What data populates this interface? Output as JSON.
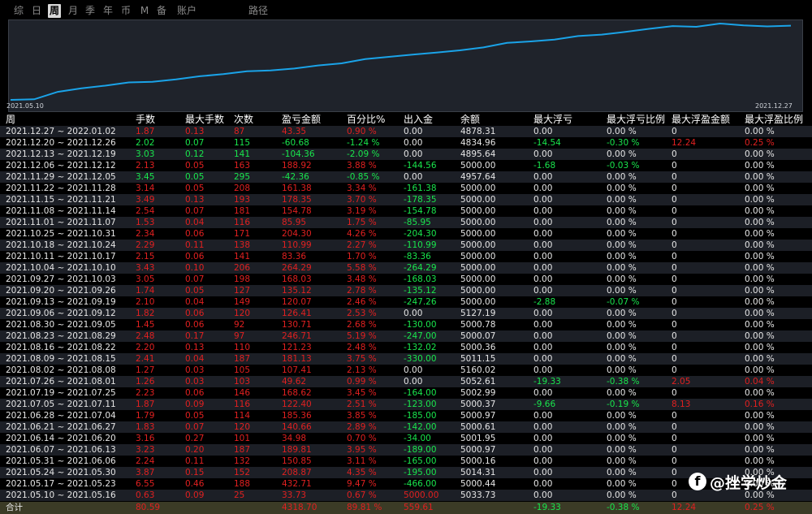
{
  "tabs": [
    {
      "label": "综",
      "active": false
    },
    {
      "label": "日",
      "active": false
    },
    {
      "label": "周",
      "active": true
    },
    {
      "label": "月",
      "active": false
    },
    {
      "label": "季",
      "active": false
    },
    {
      "label": "年",
      "active": false
    },
    {
      "label": "币",
      "active": false
    },
    {
      "label": "M",
      "active": false
    },
    {
      "label": "备",
      "active": false
    },
    {
      "label": "账户",
      "active": false
    },
    {
      "label": "路径",
      "active": false
    }
  ],
  "chart": {
    "start_date": "2021.05.10",
    "end_date": "2021.12.27",
    "line_color": "#1aa3e8"
  },
  "columns": [
    "周",
    "手数",
    "最大手数",
    "次数",
    "盈亏金额",
    "百分比%",
    "出入金",
    "余额",
    "最大浮亏",
    "最大浮亏比例",
    "最大浮盈金额",
    "最大浮盈比例"
  ],
  "rows": [
    [
      "2021.12.27 ~ 2022.01.02",
      "1.87",
      "0.13",
      "87",
      "43.35",
      "0.90 %",
      "0.00",
      "4878.31",
      "0.00",
      "0.00 %",
      "0",
      "0.00 %"
    ],
    [
      "2021.12.20 ~ 2021.12.26",
      "2.02",
      "0.07",
      "115",
      "-60.68",
      "-1.24 %",
      "0.00",
      "4834.96",
      "-14.54",
      "-0.30 %",
      "12.24",
      "0.25 %"
    ],
    [
      "2021.12.13 ~ 2021.12.19",
      "3.03",
      "0.12",
      "141",
      "-104.36",
      "-2.09 %",
      "0.00",
      "4895.64",
      "0.00",
      "0.00 %",
      "0",
      "0.00 %"
    ],
    [
      "2021.12.06 ~ 2021.12.12",
      "2.13",
      "0.05",
      "163",
      "188.92",
      "3.88 %",
      "-144.56",
      "5000.00",
      "-1.68",
      "-0.03 %",
      "0",
      "0.00 %"
    ],
    [
      "2021.11.29 ~ 2021.12.05",
      "3.45",
      "0.05",
      "295",
      "-42.36",
      "-0.85 %",
      "0.00",
      "4957.64",
      "0.00",
      "0.00 %",
      "0",
      "0.00 %"
    ],
    [
      "2021.11.22 ~ 2021.11.28",
      "3.14",
      "0.05",
      "208",
      "161.38",
      "3.34 %",
      "-161.38",
      "5000.00",
      "0.00",
      "0.00 %",
      "0",
      "0.00 %"
    ],
    [
      "2021.11.15 ~ 2021.11.21",
      "3.49",
      "0.13",
      "193",
      "178.35",
      "3.70 %",
      "-178.35",
      "5000.00",
      "0.00",
      "0.00 %",
      "0",
      "0.00 %"
    ],
    [
      "2021.11.08 ~ 2021.11.14",
      "2.54",
      "0.07",
      "181",
      "154.78",
      "3.19 %",
      "-154.78",
      "5000.00",
      "0.00",
      "0.00 %",
      "0",
      "0.00 %"
    ],
    [
      "2021.11.01 ~ 2021.11.07",
      "1.53",
      "0.04",
      "116",
      "85.95",
      "1.75 %",
      "-85.95",
      "5000.00",
      "0.00",
      "0.00 %",
      "0",
      "0.00 %"
    ],
    [
      "2021.10.25 ~ 2021.10.31",
      "2.34",
      "0.06",
      "171",
      "204.30",
      "4.26 %",
      "-204.30",
      "5000.00",
      "0.00",
      "0.00 %",
      "0",
      "0.00 %"
    ],
    [
      "2021.10.18 ~ 2021.10.24",
      "2.29",
      "0.11",
      "138",
      "110.99",
      "2.27 %",
      "-110.99",
      "5000.00",
      "0.00",
      "0.00 %",
      "0",
      "0.00 %"
    ],
    [
      "2021.10.11 ~ 2021.10.17",
      "2.15",
      "0.06",
      "141",
      "83.36",
      "1.70 %",
      "-83.36",
      "5000.00",
      "0.00",
      "0.00 %",
      "0",
      "0.00 %"
    ],
    [
      "2021.10.04 ~ 2021.10.10",
      "3.43",
      "0.10",
      "206",
      "264.29",
      "5.58 %",
      "-264.29",
      "5000.00",
      "0.00",
      "0.00 %",
      "0",
      "0.00 %"
    ],
    [
      "2021.09.27 ~ 2021.10.03",
      "3.05",
      "0.07",
      "198",
      "168.03",
      "3.48 %",
      "-168.03",
      "5000.00",
      "0.00",
      "0.00 %",
      "0",
      "0.00 %"
    ],
    [
      "2021.09.20 ~ 2021.09.26",
      "1.74",
      "0.05",
      "127",
      "135.12",
      "2.78 %",
      "-135.12",
      "5000.00",
      "0.00",
      "0.00 %",
      "0",
      "0.00 %"
    ],
    [
      "2021.09.13 ~ 2021.09.19",
      "2.10",
      "0.04",
      "149",
      "120.07",
      "2.46 %",
      "-247.26",
      "5000.00",
      "-2.88",
      "-0.07 %",
      "0",
      "0.00 %"
    ],
    [
      "2021.09.06 ~ 2021.09.12",
      "1.82",
      "0.06",
      "120",
      "126.41",
      "2.53 %",
      "0.00",
      "5127.19",
      "0.00",
      "0.00 %",
      "0",
      "0.00 %"
    ],
    [
      "2021.08.30 ~ 2021.09.05",
      "1.45",
      "0.06",
      "92",
      "130.71",
      "2.68 %",
      "-130.00",
      "5000.78",
      "0.00",
      "0.00 %",
      "0",
      "0.00 %"
    ],
    [
      "2021.08.23 ~ 2021.08.29",
      "2.48",
      "0.17",
      "97",
      "246.71",
      "5.19 %",
      "-247.00",
      "5000.07",
      "0.00",
      "0.00 %",
      "0",
      "0.00 %"
    ],
    [
      "2021.08.16 ~ 2021.08.22",
      "2.20",
      "0.13",
      "110",
      "121.23",
      "2.48 %",
      "-132.02",
      "5000.36",
      "0.00",
      "0.00 %",
      "0",
      "0.00 %"
    ],
    [
      "2021.08.09 ~ 2021.08.15",
      "2.41",
      "0.04",
      "187",
      "181.13",
      "3.75 %",
      "-330.00",
      "5011.15",
      "0.00",
      "0.00 %",
      "0",
      "0.00 %"
    ],
    [
      "2021.08.02 ~ 2021.08.08",
      "1.27",
      "0.03",
      "105",
      "107.41",
      "2.13 %",
      "0.00",
      "5160.02",
      "0.00",
      "0.00 %",
      "0",
      "0.00 %"
    ],
    [
      "2021.07.26 ~ 2021.08.01",
      "1.26",
      "0.03",
      "103",
      "49.62",
      "0.99 %",
      "0.00",
      "5052.61",
      "-19.33",
      "-0.38 %",
      "2.05",
      "0.04 %"
    ],
    [
      "2021.07.19 ~ 2021.07.25",
      "2.23",
      "0.06",
      "146",
      "168.62",
      "3.45 %",
      "-164.00",
      "5002.99",
      "0.00",
      "0.00 %",
      "0",
      "0.00 %"
    ],
    [
      "2021.07.05 ~ 2021.07.11",
      "1.87",
      "0.09",
      "116",
      "122.40",
      "2.51 %",
      "-123.00",
      "5000.37",
      "-9.66",
      "-0.19 %",
      "8.13",
      "0.16 %"
    ],
    [
      "2021.06.28 ~ 2021.07.04",
      "1.79",
      "0.05",
      "114",
      "185.36",
      "3.85 %",
      "-185.00",
      "5000.97",
      "0.00",
      "0.00 %",
      "0",
      "0.00 %"
    ],
    [
      "2021.06.21 ~ 2021.06.27",
      "1.83",
      "0.07",
      "120",
      "140.66",
      "2.89 %",
      "-142.00",
      "5000.61",
      "0.00",
      "0.00 %",
      "0",
      "0.00 %"
    ],
    [
      "2021.06.14 ~ 2021.06.20",
      "3.16",
      "0.27",
      "101",
      "34.98",
      "0.70 %",
      "-34.00",
      "5001.95",
      "0.00",
      "0.00 %",
      "0",
      "0.00 %"
    ],
    [
      "2021.06.07 ~ 2021.06.13",
      "3.23",
      "0.20",
      "187",
      "189.81",
      "3.95 %",
      "-189.00",
      "5000.97",
      "0.00",
      "0.00 %",
      "0",
      "0.00 %"
    ],
    [
      "2021.05.31 ~ 2021.06.06",
      "2.24",
      "0.11",
      "132",
      "150.85",
      "3.11 %",
      "-165.00",
      "5000.16",
      "0.00",
      "0.00 %",
      "0",
      "0.00 %"
    ],
    [
      "2021.05.24 ~ 2021.05.30",
      "3.87",
      "0.15",
      "152",
      "208.87",
      "4.35 %",
      "-195.00",
      "5014.31",
      "0.00",
      "0.00 %",
      "0",
      "0.00 %"
    ],
    [
      "2021.05.17 ~ 2021.05.23",
      "6.55",
      "0.46",
      "188",
      "432.71",
      "9.47 %",
      "-466.00",
      "5000.44",
      "0.00",
      "0.00 %",
      "0",
      "0.00 %"
    ],
    [
      "2021.05.10 ~ 2021.05.16",
      "0.63",
      "0.09",
      "25",
      "33.73",
      "0.67 %",
      "5000.00",
      "5033.73",
      "0.00",
      "0.00 %",
      "0",
      "0.00 %"
    ]
  ],
  "total": [
    "合计",
    "80.59",
    "",
    "",
    "4318.70",
    "89.81 %",
    "559.61",
    "",
    "-19.33",
    "-0.38 %",
    "12.24",
    "0.25 %"
  ],
  "watermark": {
    "text": "@挫学炒金",
    "icon": "f"
  }
}
